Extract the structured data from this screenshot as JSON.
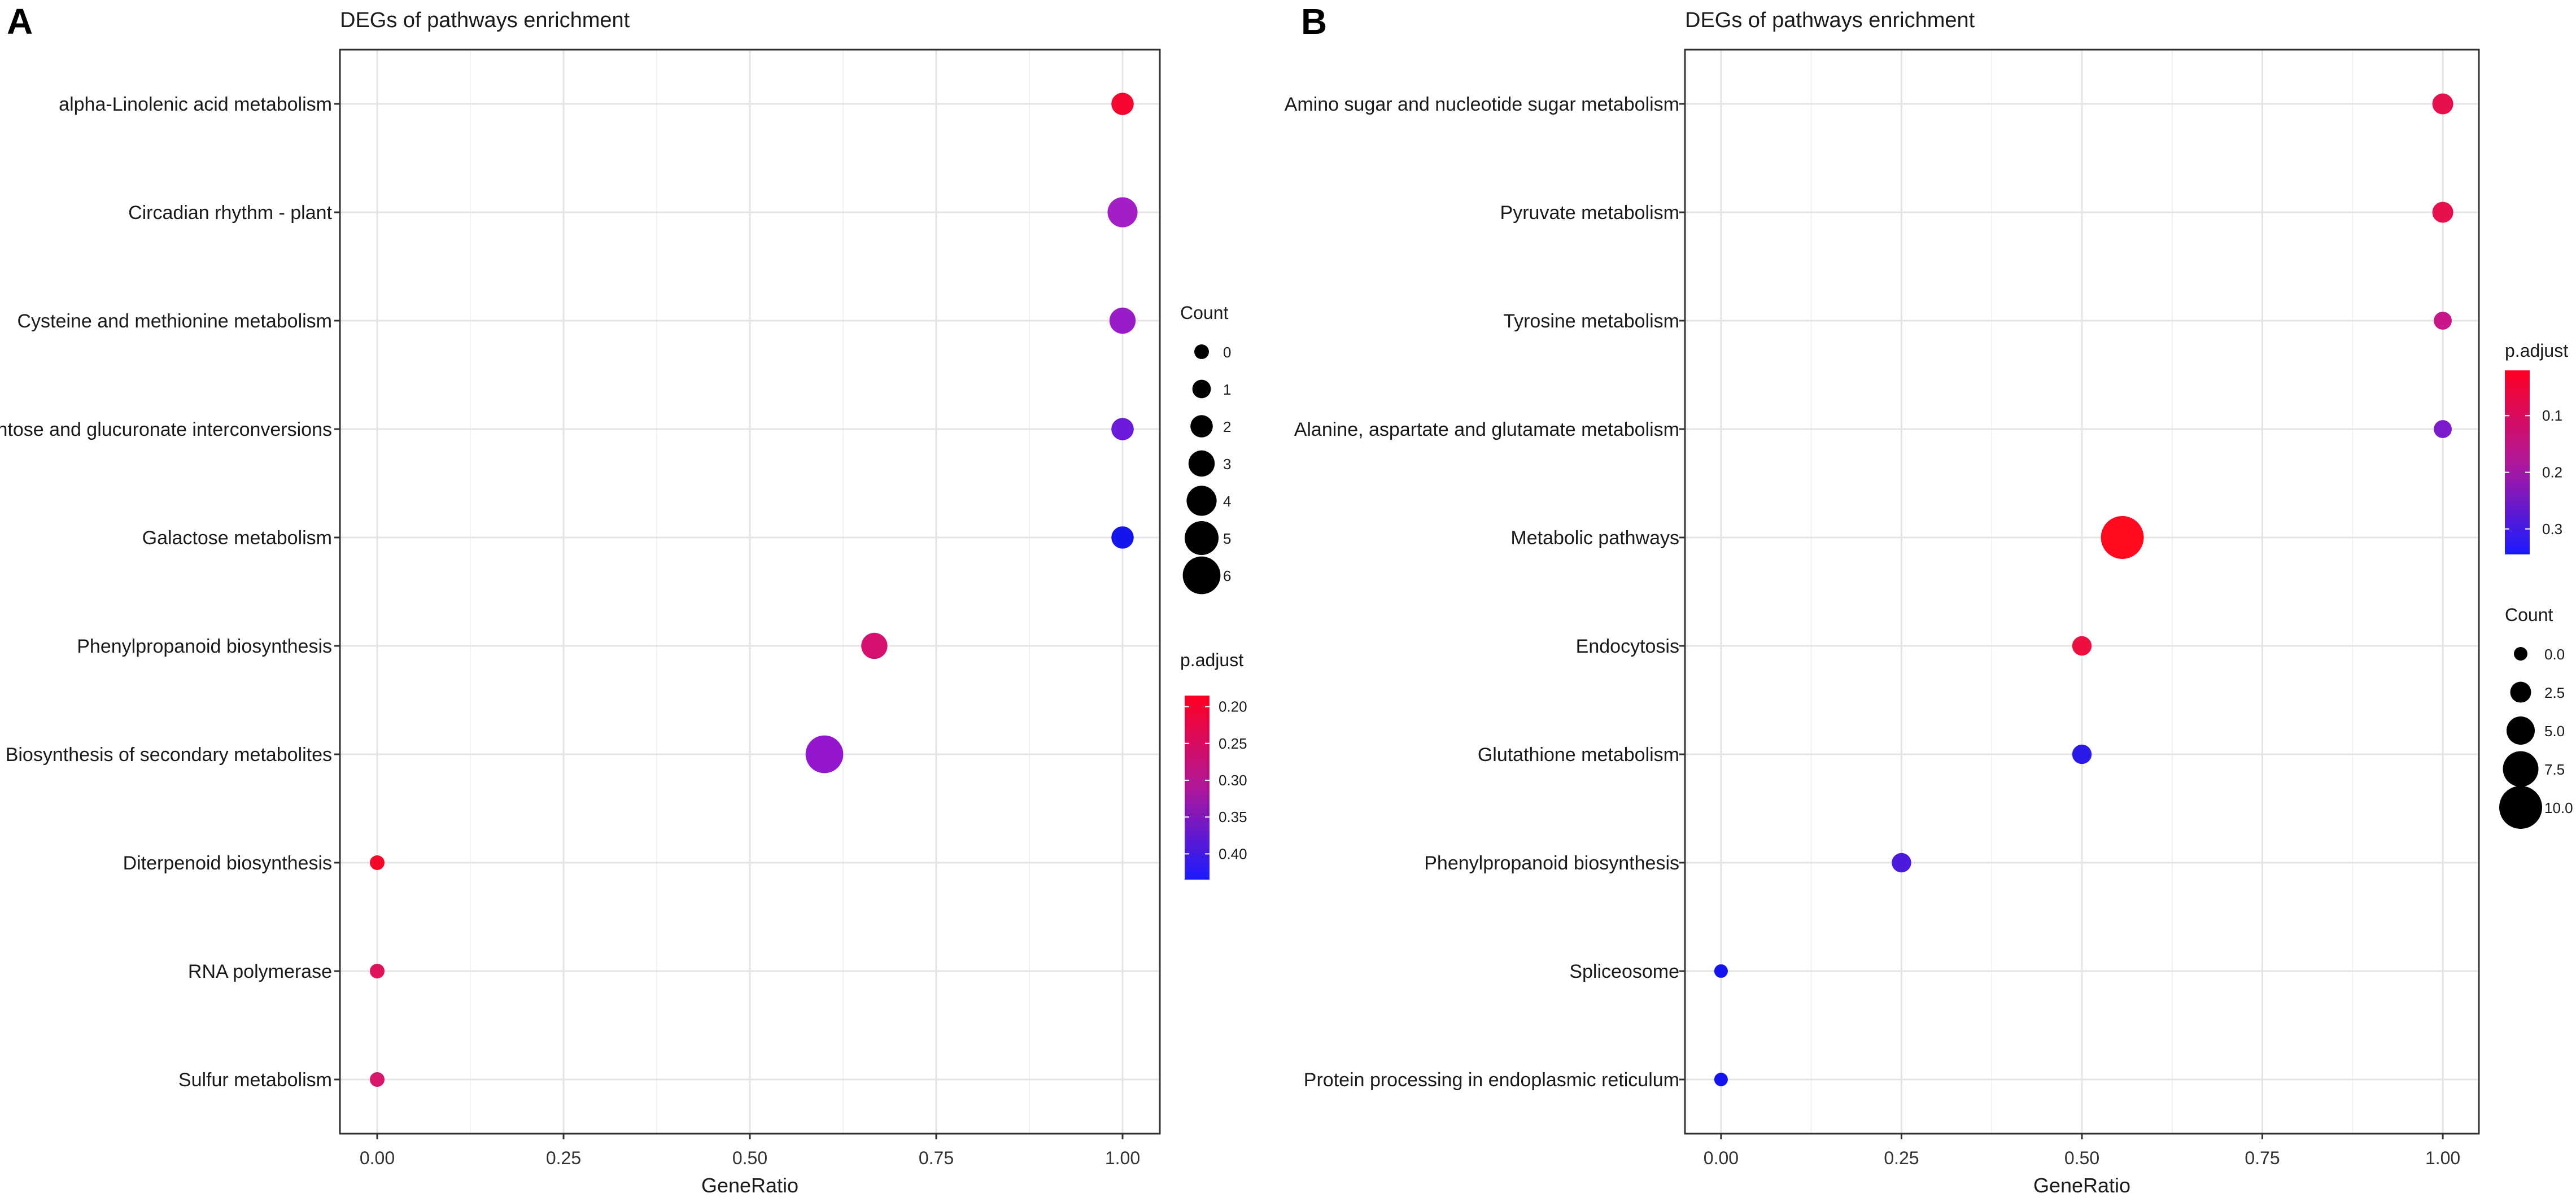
{
  "chart_data": [
    {
      "panel_label": "A",
      "type": "scatter",
      "title": "DEGs of pathways enrichment",
      "xlabel": "GeneRatio",
      "ylabel": "",
      "xlim": [
        -0.05,
        1.05
      ],
      "x_ticks": [
        "0.00",
        "0.25",
        "0.50",
        "0.75",
        "1.00"
      ],
      "x_tick_values": [
        0,
        0.25,
        0.5,
        0.75,
        1.0
      ],
      "grid": true,
      "categories": [
        "alpha-Linolenic acid metabolism",
        "Circadian rhythm - plant",
        "Cysteine and methionine metabolism",
        "Pentose and glucuronate interconversions",
        "Galactose metabolism",
        "Phenylpropanoid biosynthesis",
        "Biosynthesis of secondary metabolites",
        "Diterpenoid biosynthesis",
        "RNA polymerase",
        "Sulfur metabolism"
      ],
      "points": [
        {
          "pathway": "alpha-Linolenic acid metabolism",
          "gene_ratio": 1.0,
          "count": 2,
          "p_adjust": 0.19,
          "color": "#f4062e"
        },
        {
          "pathway": "Circadian rhythm - plant",
          "gene_ratio": 1.0,
          "count": 4,
          "p_adjust": 0.36,
          "color": "#a41ec6"
        },
        {
          "pathway": "Cysteine and methionine metabolism",
          "gene_ratio": 1.0,
          "count": 3,
          "p_adjust": 0.37,
          "color": "#9a1cc8"
        },
        {
          "pathway": "Pentose and glucuronate interconversions",
          "gene_ratio": 1.0,
          "count": 2,
          "p_adjust": 0.4,
          "color": "#6a1ad8"
        },
        {
          "pathway": "Galactose metabolism",
          "gene_ratio": 1.0,
          "count": 2,
          "p_adjust": 0.43,
          "color": "#1414ee"
        },
        {
          "pathway": "Phenylpropanoid biosynthesis",
          "gene_ratio": 0.667,
          "count": 3,
          "p_adjust": 0.27,
          "color": "#d6106e"
        },
        {
          "pathway": "Biosynthesis of secondary metabolites",
          "gene_ratio": 0.6,
          "count": 6,
          "p_adjust": 0.39,
          "color": "#9416ce"
        },
        {
          "pathway": "Diterpenoid biosynthesis",
          "gene_ratio": 0.0,
          "count": 0,
          "p_adjust": 0.19,
          "color": "#f40a28"
        },
        {
          "pathway": "RNA polymerase",
          "gene_ratio": 0.0,
          "count": 0,
          "p_adjust": 0.25,
          "color": "#e0125c"
        },
        {
          "pathway": "Sulfur metabolism",
          "gene_ratio": 0.0,
          "count": 0,
          "p_adjust": 0.27,
          "color": "#d8166a"
        }
      ],
      "legends": [
        {
          "kind": "size",
          "title": "Count",
          "labels": [
            "0",
            "1",
            "2",
            "3",
            "4",
            "5",
            "6"
          ],
          "values": [
            0,
            1,
            2,
            3,
            4,
            5,
            6
          ]
        },
        {
          "kind": "color",
          "title": "p.adjust",
          "labels": [
            "0.20",
            "0.25",
            "0.30",
            "0.35",
            "0.40"
          ],
          "values": [
            0.2,
            0.25,
            0.3,
            0.35,
            0.4
          ],
          "range": [
            0.185,
            0.435
          ],
          "low_color": "#ff0022",
          "high_color": "#1a1aff"
        }
      ]
    },
    {
      "panel_label": "B",
      "type": "scatter",
      "title": "DEGs of pathways enrichment",
      "xlabel": "GeneRatio",
      "ylabel": "",
      "xlim": [
        -0.05,
        1.05
      ],
      "x_ticks": [
        "0.00",
        "0.25",
        "0.50",
        "0.75",
        "1.00"
      ],
      "x_tick_values": [
        0,
        0.25,
        0.5,
        0.75,
        1.0
      ],
      "grid": true,
      "categories": [
        "Amino sugar and nucleotide sugar metabolism",
        "Pyruvate metabolism",
        "Tyrosine metabolism",
        "Alanine, aspartate and glutamate metabolism",
        "Metabolic pathways",
        "Endocytosis",
        "Glutathione metabolism",
        "Phenylpropanoid biosynthesis",
        "Spliceosome",
        "Protein processing in endoplasmic reticulum"
      ],
      "points": [
        {
          "pathway": "Amino sugar and nucleotide sugar metabolism",
          "gene_ratio": 1.0,
          "count": 2.5,
          "p_adjust": 0.1,
          "color": "#e8104c"
        },
        {
          "pathway": "Pyruvate metabolism",
          "gene_ratio": 1.0,
          "count": 2.5,
          "p_adjust": 0.1,
          "color": "#e8104c"
        },
        {
          "pathway": "Tyrosine metabolism",
          "gene_ratio": 1.0,
          "count": 1.5,
          "p_adjust": 0.16,
          "color": "#c8168a"
        },
        {
          "pathway": "Alanine, aspartate and glutamate metabolism",
          "gene_ratio": 1.0,
          "count": 1.5,
          "p_adjust": 0.26,
          "color": "#7a1ccc"
        },
        {
          "pathway": "Metabolic pathways",
          "gene_ratio": 0.556,
          "count": 10.0,
          "p_adjust": 0.03,
          "color": "#ff0a1e"
        },
        {
          "pathway": "Endocytosis",
          "gene_ratio": 0.5,
          "count": 2.0,
          "p_adjust": 0.09,
          "color": "#ee0e40"
        },
        {
          "pathway": "Glutathione metabolism",
          "gene_ratio": 0.5,
          "count": 2.0,
          "p_adjust": 0.33,
          "color": "#2a1ae8"
        },
        {
          "pathway": "Phenylpropanoid biosynthesis",
          "gene_ratio": 0.25,
          "count": 2.0,
          "p_adjust": 0.3,
          "color": "#4c1adc"
        },
        {
          "pathway": "Spliceosome",
          "gene_ratio": 0.0,
          "count": 0.0,
          "p_adjust": 0.34,
          "color": "#1414f0"
        },
        {
          "pathway": "Protein processing in endoplasmic reticulum",
          "gene_ratio": 0.0,
          "count": 0.0,
          "p_adjust": 0.34,
          "color": "#1414f0"
        }
      ],
      "legends": [
        {
          "kind": "color",
          "title": "p.adjust",
          "labels": [
            "0.1",
            "0.2",
            "0.3"
          ],
          "values": [
            0.1,
            0.2,
            0.3
          ],
          "range": [
            0.02,
            0.345
          ],
          "low_color": "#ff0022",
          "high_color": "#1a1aff"
        },
        {
          "kind": "size",
          "title": "Count",
          "labels": [
            "0.0",
            "2.5",
            "5.0",
            "7.5",
            "10.0"
          ],
          "values": [
            0,
            2.5,
            5.0,
            7.5,
            10.0
          ]
        }
      ]
    }
  ]
}
